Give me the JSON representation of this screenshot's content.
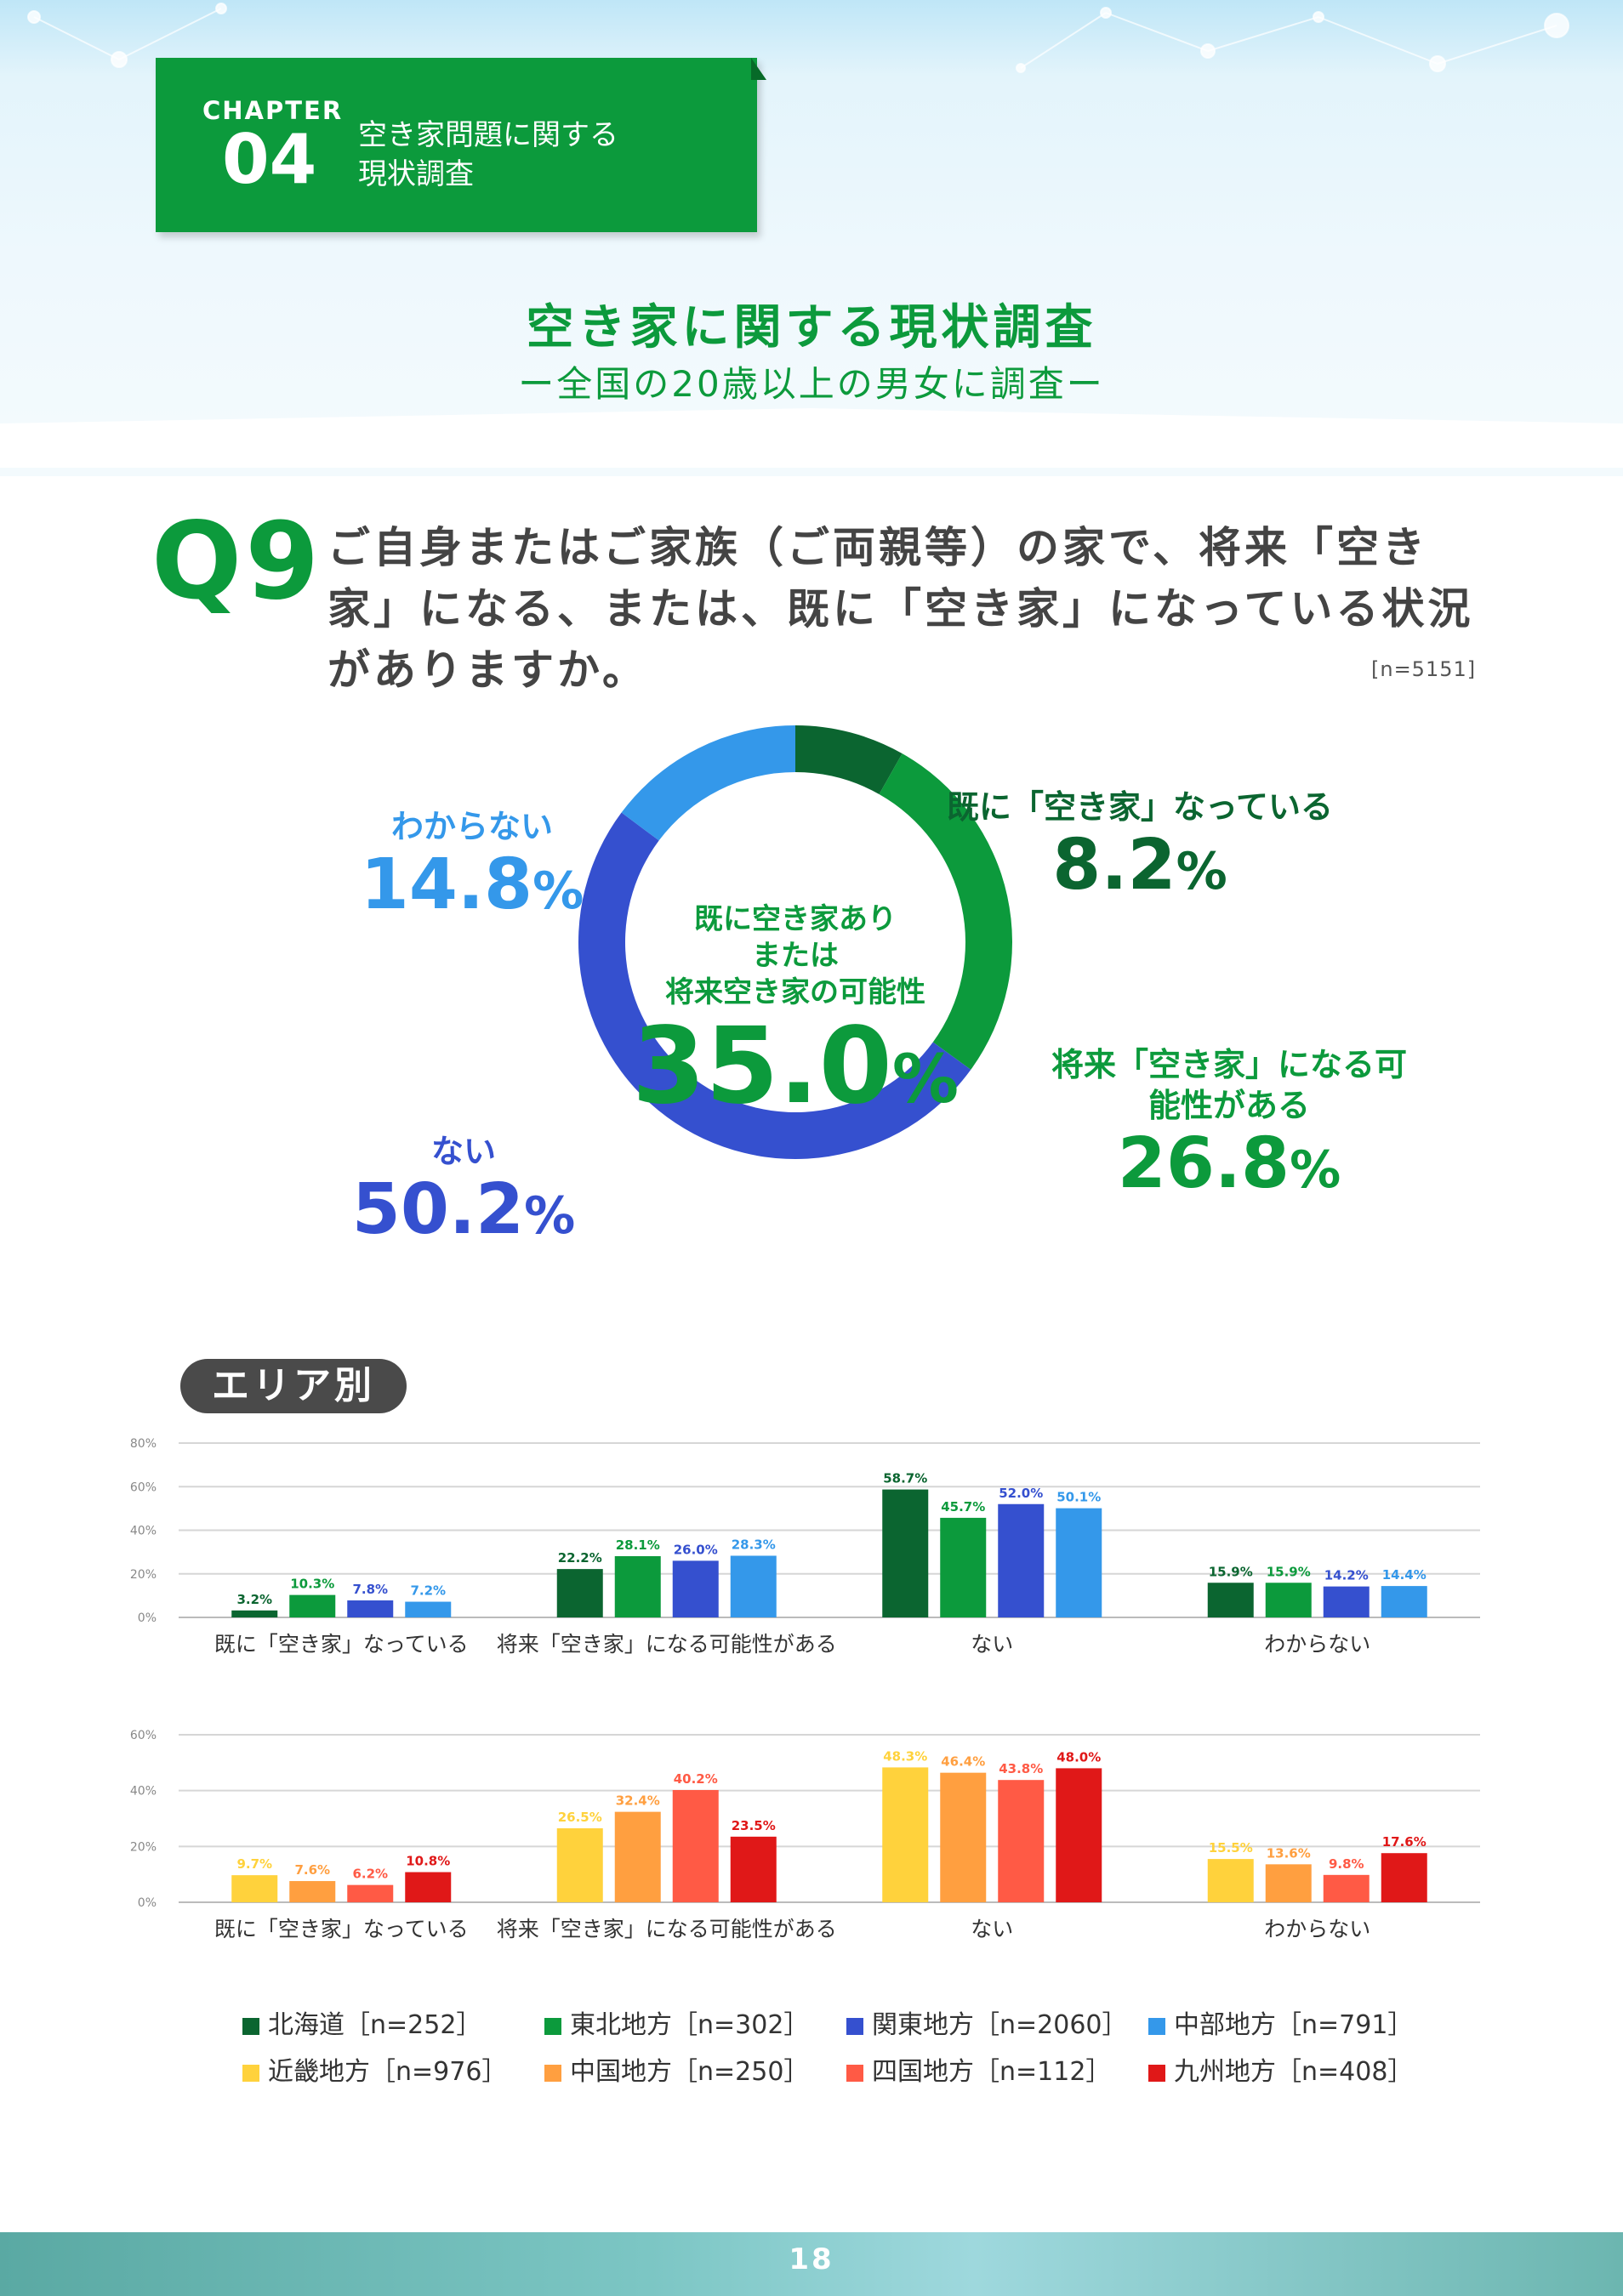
{
  "chapter": {
    "label": "CHAPTER",
    "number": "04",
    "title": "空き家問題に関する\n現状調査"
  },
  "survey": {
    "title": "空き家に関する現状調査",
    "subtitle": "ー全国の20歳以上の男女に調査ー"
  },
  "question": {
    "label": "Q9",
    "text": "ご自身またはご家族（ご両親等）の家で、将来「空き家」になる、または、既に「空き家」になっている状況がありますか。",
    "n": "[n=5151]"
  },
  "colors": {
    "already": "#0b6530",
    "future": "#0c9a3c",
    "no": "#3550cf",
    "unknown": "#3498ea",
    "hokkaido": "#0b6530",
    "tohoku": "#0c9a3c",
    "kanto": "#3550cf",
    "chubu": "#3498ea",
    "kinki": "#ffd23c",
    "chugoku": "#ff9f40",
    "shikoku": "#ff5a45",
    "kyushu": "#e01818"
  },
  "chart_data": [
    {
      "type": "pie",
      "categories": [
        "既に「空き家」なっている",
        "将来「空き家」になる可能性がある",
        "ない",
        "わからない"
      ],
      "values": [
        8.2,
        26.8,
        50.2,
        14.8
      ],
      "value_labels": [
        "8.2",
        "26.8",
        "50.2",
        "14.8"
      ],
      "unit": "%",
      "center_label": "既に空き家あり\nまたは\n将来空き家の可能性",
      "center_value": "35.0",
      "n": "[n=5151]"
    },
    {
      "type": "bar",
      "title": "エリア別",
      "categories": [
        "既に「空き家」なっている",
        "将来「空き家」になる可能性がある",
        "ない",
        "わからない"
      ],
      "ylim": [
        0,
        80
      ],
      "yticks": [
        "0%",
        "20%",
        "40%",
        "60%",
        "80%"
      ],
      "grid": true,
      "series": [
        {
          "name": "北海道［n=252］",
          "color": "hokkaido",
          "values": [
            3.2,
            22.2,
            58.7,
            15.9
          ],
          "labels": [
            "3.2%",
            "22.2%",
            "58.7%",
            "15.9%"
          ]
        },
        {
          "name": "東北地方［n=302］",
          "color": "tohoku",
          "values": [
            10.3,
            28.1,
            45.7,
            15.9
          ],
          "labels": [
            "10.3%",
            "28.1%",
            "45.7%",
            "15.9%"
          ]
        },
        {
          "name": "関東地方［n=2060］",
          "color": "kanto",
          "values": [
            7.8,
            26.0,
            52.0,
            14.2
          ],
          "labels": [
            "7.8%",
            "26.0%",
            "52.0%",
            "14.2%"
          ]
        },
        {
          "name": "中部地方［n=791］",
          "color": "chubu",
          "values": [
            7.2,
            28.3,
            50.1,
            14.4
          ],
          "labels": [
            "7.2%",
            "28.3%",
            "50.1%",
            "14.4%"
          ]
        }
      ]
    },
    {
      "type": "bar",
      "categories": [
        "既に「空き家」なっている",
        "将来「空き家」になる可能性がある",
        "ない",
        "わからない"
      ],
      "ylim": [
        0,
        60
      ],
      "yticks": [
        "0%",
        "20%",
        "40%",
        "60%"
      ],
      "grid": true,
      "series": [
        {
          "name": "近畿地方［n=976］",
          "color": "kinki",
          "values": [
            9.7,
            26.5,
            48.3,
            15.5
          ],
          "labels": [
            "9.7%",
            "26.5%",
            "48.3%",
            "15.5%"
          ]
        },
        {
          "name": "中国地方［n=250］",
          "color": "chugoku",
          "values": [
            7.6,
            32.4,
            46.4,
            13.6
          ],
          "labels": [
            "7.6%",
            "32.4%",
            "46.4%",
            "13.6%"
          ]
        },
        {
          "name": "四国地方［n=112］",
          "color": "shikoku",
          "values": [
            6.2,
            40.2,
            43.8,
            9.8
          ],
          "labels": [
            "6.2%",
            "40.2%",
            "43.8%",
            "9.8%"
          ]
        },
        {
          "name": "九州地方［n=408］",
          "color": "kyushu",
          "values": [
            10.8,
            23.5,
            48.0,
            17.6
          ],
          "labels": [
            "10.8%",
            "23.5%",
            "48.0%",
            "17.6%"
          ]
        }
      ]
    }
  ],
  "legend": {
    "items": [
      {
        "label": "北海道［n=252］",
        "color": "hokkaido"
      },
      {
        "label": "東北地方［n=302］",
        "color": "tohoku"
      },
      {
        "label": "関東地方［n=2060］",
        "color": "kanto"
      },
      {
        "label": "中部地方［n=791］",
        "color": "chubu"
      },
      {
        "label": "近畿地方［n=976］",
        "color": "kinki"
      },
      {
        "label": "中国地方［n=250］",
        "color": "chugoku"
      },
      {
        "label": "四国地方［n=112］",
        "color": "shikoku"
      },
      {
        "label": "九州地方［n=408］",
        "color": "kyushu"
      }
    ]
  },
  "page": {
    "number": "18"
  }
}
